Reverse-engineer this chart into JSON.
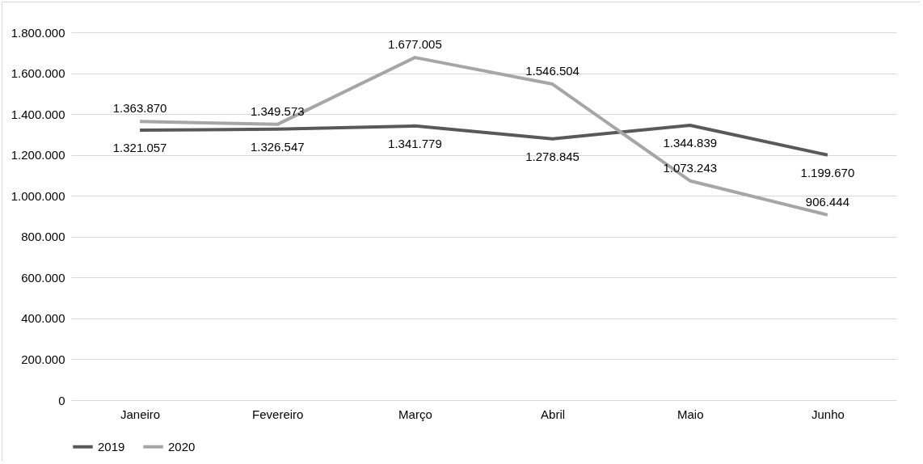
{
  "chart_data": {
    "type": "line",
    "categories": [
      "Janeiro",
      "Fevereiro",
      "Março",
      "Abril",
      "Maio",
      "Junho"
    ],
    "series": [
      {
        "name": "2019",
        "color": "#595959",
        "values": [
          1321057,
          1326547,
          1341779,
          1278845,
          1344839,
          1199670
        ],
        "value_labels": [
          "1.321.057",
          "1.326.547",
          "1.341.779",
          "1.278.845",
          "1.344.839",
          "1.199.670"
        ]
      },
      {
        "name": "2020",
        "color": "#a6a6a6",
        "values": [
          1363870,
          1349573,
          1677005,
          1546504,
          1073243,
          906444
        ],
        "value_labels": [
          "1.363.870",
          "1.349.573",
          "1.677.005",
          "1.546.504",
          "1.073.243",
          "906.444"
        ]
      }
    ],
    "ylim": [
      0,
      1800000
    ],
    "yticks": [
      {
        "value": 0,
        "label": "0"
      },
      {
        "value": 200000,
        "label": "200.000"
      },
      {
        "value": 400000,
        "label": "400.000"
      },
      {
        "value": 600000,
        "label": "600.000"
      },
      {
        "value": 800000,
        "label": "800.000"
      },
      {
        "value": 1000000,
        "label": "1.000.000"
      },
      {
        "value": 1200000,
        "label": "1.200.000"
      },
      {
        "value": 1400000,
        "label": "1.400.000"
      },
      {
        "value": 1600000,
        "label": "1.600.000"
      },
      {
        "value": 1800000,
        "label": "1.800.000"
      }
    ],
    "grid": "y",
    "legend": "bottom",
    "marker": "none",
    "line_style": "solid"
  }
}
